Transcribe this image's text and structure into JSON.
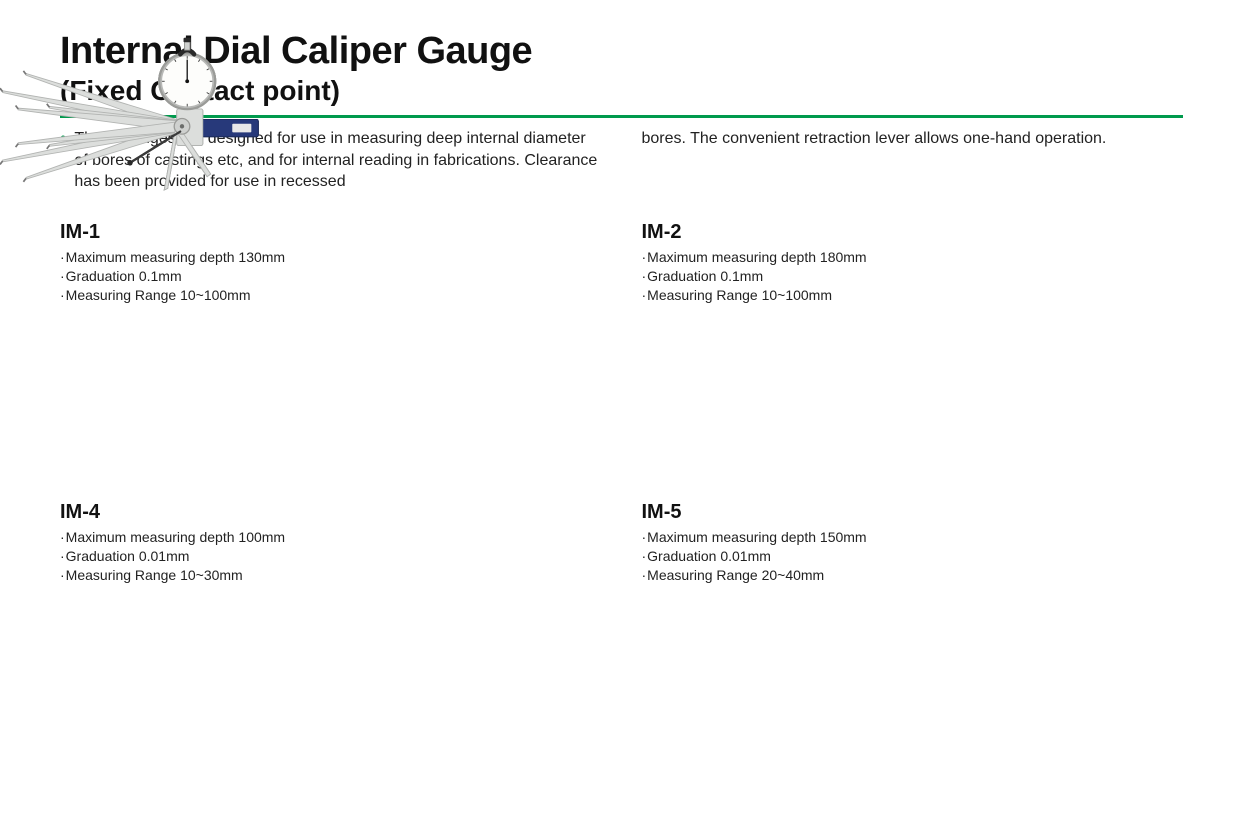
{
  "title": "Internal Dial Caliper Gauge",
  "subtitle": "(Fixed Contact point)",
  "rule_color": "#009a4d",
  "description_col1": "These gauges are designed for use in measuring deep internal diameter of bores of castings etc, and for internal reading in fabrications. Clearance has been provided for use in recessed",
  "description_col2": "bores. The convenient retraction lever allows one-hand operation.",
  "products": [
    {
      "model": "IM-1",
      "specs": [
        "Maximum measuring depth 130mm",
        "Graduation 0.1mm",
        "Measuring Range 10~100mm"
      ],
      "arm_spread": 60,
      "arm_length": 200
    },
    {
      "model": "IM-2",
      "specs": [
        "Maximum measuring depth 180mm",
        "Graduation 0.1mm",
        "Measuring Range 10~100mm"
      ],
      "arm_spread": 40,
      "arm_length": 230
    },
    {
      "model": "IM-4",
      "specs": [
        "Maximum measuring depth 100mm",
        "Graduation 0.01mm",
        "Measuring Range 10~30mm"
      ],
      "arm_spread": 22,
      "arm_length": 170
    },
    {
      "model": "IM-5",
      "specs": [
        "Maximum measuring depth 150mm",
        "Graduation 0.01mm",
        "Measuring Range 20~40mm"
      ],
      "arm_spread": 20,
      "arm_length": 210
    }
  ],
  "colors": {
    "arm_fill": "#dcdedc",
    "arm_stroke": "#b2b4b2",
    "dial_face": "#fdfdfb",
    "dial_rim": "#9a9b98",
    "handle": "#27397a",
    "needle": "#111111",
    "background": "#ffffff",
    "text": "#1a1a1a"
  }
}
